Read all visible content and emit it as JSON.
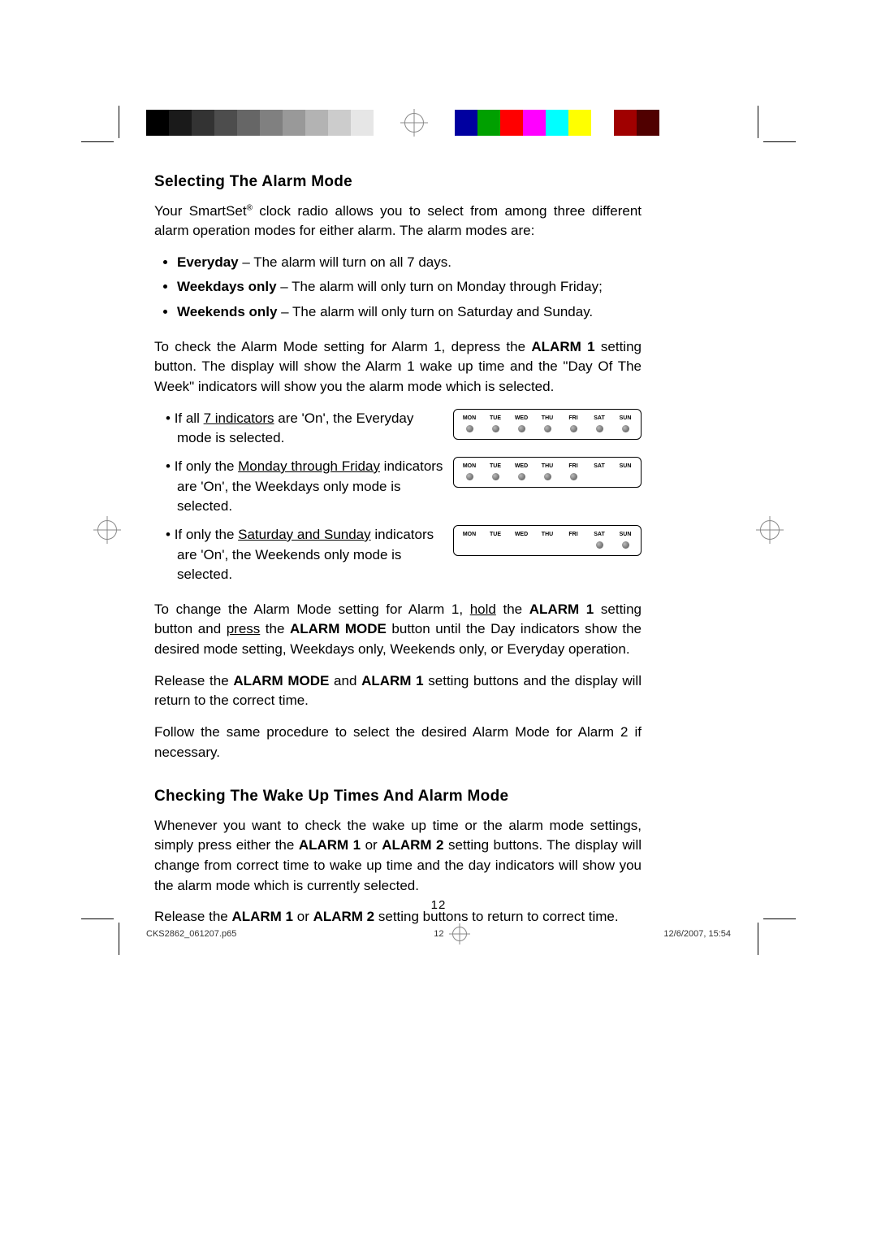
{
  "colorbar": {
    "grays": [
      "#000000",
      "#1a1a1a",
      "#333333",
      "#4d4d4d",
      "#666666",
      "#808080",
      "#999999",
      "#b3b3b3",
      "#cccccc",
      "#e6e6e6"
    ],
    "colors": [
      "#0000a0",
      "#00a000",
      "#ff0000",
      "#ff00ff",
      "#00ffff",
      "#ffff00",
      "#ffffff",
      "#a00000",
      "#500000"
    ]
  },
  "section1_title": "Selecting The Alarm Mode",
  "intro_pre": "Your SmartSet",
  "intro_post": " clock radio allows you to select from among three different alarm operation modes for either alarm. The alarm modes are:",
  "modes": [
    {
      "b": "Everyday",
      "rest": " – The alarm will turn on all 7 days."
    },
    {
      "b": "Weekdays only",
      "rest": " – The alarm will only turn on Monday through Friday;"
    },
    {
      "b": "Weekends only",
      "rest": " – The alarm will only turn on Saturday and Sunday."
    }
  ],
  "check_para_pre": "To check the Alarm Mode setting for Alarm 1, depress the ",
  "check_para_bold": "ALARM 1",
  "check_para_post": " setting button. The display will show the Alarm 1 wake up time and the \"Day Of The Week\" indicators will show you the alarm mode which is selected.",
  "day_labels": [
    "MON",
    "TUE",
    "WED",
    "THU",
    "FRI",
    "SAT",
    "SUN"
  ],
  "rows": [
    {
      "pre": "If all ",
      "u": "7 indicators",
      "post": " are 'On', the Everyday mode is selected.",
      "on": [
        true,
        true,
        true,
        true,
        true,
        true,
        true
      ]
    },
    {
      "pre": "If only the ",
      "u": "Monday through Friday",
      "post": " indicators are 'On', the Weekdays only mode is selected.",
      "on": [
        true,
        true,
        true,
        true,
        true,
        false,
        false
      ]
    },
    {
      "pre": "If only the ",
      "u": "Saturday and Sunday",
      "post": " indicators are 'On', the Weekends only mode is selected.",
      "on": [
        false,
        false,
        false,
        false,
        false,
        true,
        true
      ]
    }
  ],
  "change_1": "To change the Alarm Mode setting for Alarm 1, ",
  "change_u1": "hold",
  "change_2": " the ",
  "change_b1": "ALARM 1",
  "change_3": " setting button and ",
  "change_u2": "press",
  "change_4": " the ",
  "change_b2": "ALARM MODE",
  "change_5": " button until the Day indicators show the desired mode setting, Weekdays only, Weekends only, or Everyday operation.",
  "release_1": "Release the ",
  "release_b1": "ALARM MODE",
  "release_2": " and ",
  "release_b2": "ALARM 1",
  "release_3": " setting buttons and the display will return to the correct time.",
  "follow": "Follow the same procedure to select the desired Alarm Mode for Alarm 2 if necessary.",
  "section2_title": "Checking The Wake Up Times And Alarm Mode",
  "s2p1_1": "Whenever you want to check the wake up time or the alarm mode settings, simply press either the ",
  "s2p1_b1": "ALARM 1",
  "s2p1_2": " or ",
  "s2p1_b2": "ALARM 2",
  "s2p1_3": " setting buttons. The display will change from correct time to wake up time and the day indicators will show you the alarm mode which is currently selected.",
  "s2p2_1": "Release the ",
  "s2p2_b1": "ALARM 1",
  "s2p2_2": " or ",
  "s2p2_b2": "ALARM 2",
  "s2p2_3": " setting buttons to return to correct time.",
  "page_number": "12",
  "footer_file": "CKS2862_061207.p65",
  "footer_page": "12",
  "footer_date": "12/6/2007, 15:54"
}
